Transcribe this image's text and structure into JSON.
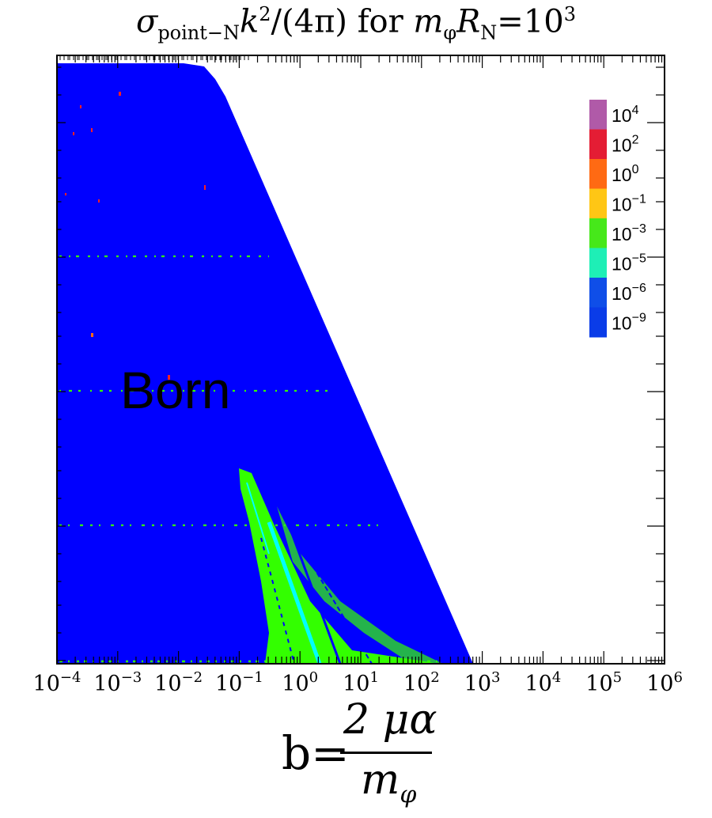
{
  "title": {
    "symbol": "σ",
    "subscript": "point−N",
    "k": "k",
    "k_exp": "2",
    "rest": "/(4π) for ",
    "m": "m",
    "m_sub": "φ",
    "R": "R",
    "R_sub": "N",
    "eq": "=10",
    "eq_exp": "3"
  },
  "x_axis_label": {
    "lhs": "b=",
    "numerator": "2 μα",
    "denominator_main": "m",
    "denominator_sub": "φ"
  },
  "region_label": "Born",
  "chart_data": {
    "type": "heatmap",
    "x_scale": "log",
    "xlim": [
      0.0001,
      1000000
    ],
    "x_tick_labels": [
      {
        "base": "10",
        "exp": "−4"
      },
      {
        "base": "10",
        "exp": "−3"
      },
      {
        "base": "10",
        "exp": "−2"
      },
      {
        "base": "10",
        "exp": "−1"
      },
      {
        "base": "10",
        "exp": "0"
      },
      {
        "base": "10",
        "exp": "1"
      },
      {
        "base": "10",
        "exp": "2"
      },
      {
        "base": "10",
        "exp": "3"
      },
      {
        "base": "10",
        "exp": "4"
      },
      {
        "base": "10",
        "exp": "5"
      },
      {
        "base": "10",
        "exp": "6"
      }
    ],
    "y_tick_labels": [],
    "legend": {
      "placement": "top-right",
      "entries": [
        {
          "base": "10",
          "exp": "4",
          "color": "#b05aa8"
        },
        {
          "base": "10",
          "exp": "2",
          "color": "#e41d34"
        },
        {
          "base": "10",
          "exp": "0",
          "color": "#ff6a13"
        },
        {
          "base": "10",
          "exp": "−1",
          "color": "#ffc615"
        },
        {
          "base": "10",
          "exp": "−3",
          "color": "#46e81a"
        },
        {
          "base": "10",
          "exp": "−5",
          "color": "#1eefb6"
        },
        {
          "base": "10",
          "exp": "−6",
          "color": "#0f4ee8"
        },
        {
          "base": "10",
          "exp": "−9",
          "color": "#0a3ce8"
        }
      ]
    },
    "colors": {
      "born_region": "#0000ff",
      "resonance_band": "#33ff00",
      "resonance_core": "#00ffff",
      "outside": "#ffffff"
    }
  }
}
